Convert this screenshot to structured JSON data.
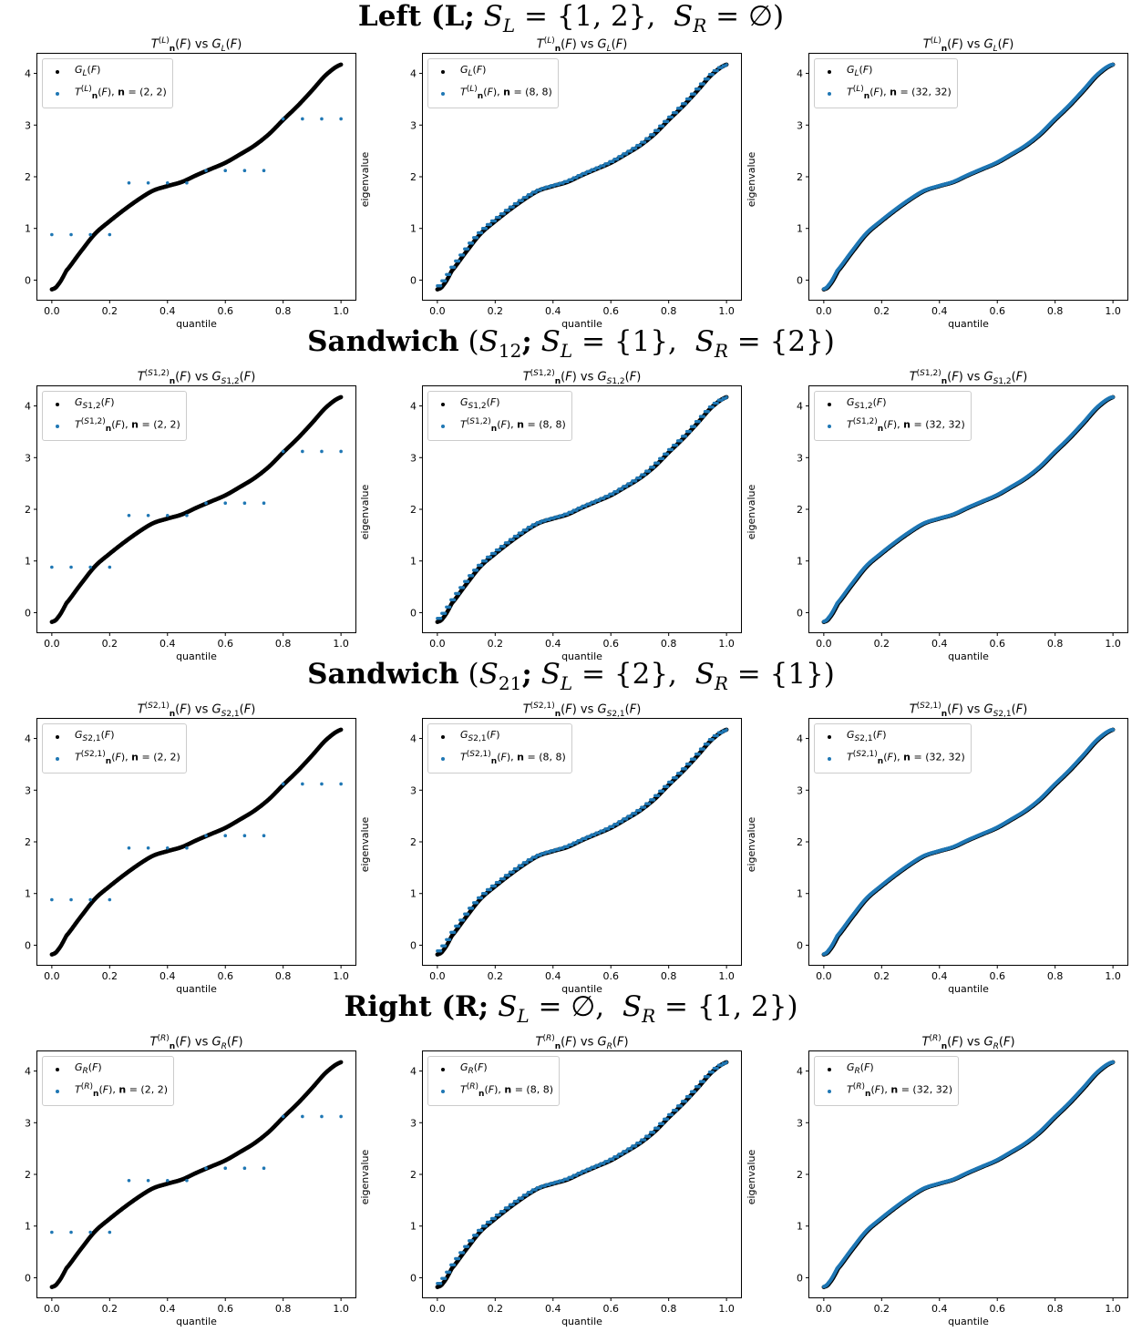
{
  "rows": [
    {
      "title_html": "<span class=\"b\">Left (L;</span> <i>S</i><sub><i>L</i></sub> = {1, 2},&nbsp; <i>S</i><sub><i>R</i></sub> = ∅)",
      "panels": [
        {
          "title_html": "<i>T</i><sup>(<i>L</i>)</sup><sub><b>n</b></sub>(<i>F</i>) vs <i>G</i><sub><i>L</i></sub>(<i>F</i>)",
          "legend_g_html": "<i>G</i><sub><i>L</i></sub>(<i>F</i>)",
          "legend_t_html": "<i>T</i><sup>(<i>L</i>)</sup><sub><b>n</b></sub>(<i>F</i>), <b>n</b> = (2, 2)",
          "n": 2
        },
        {
          "title_html": "<i>T</i><sup>(<i>L</i>)</sup><sub><b>n</b></sub>(<i>F</i>) vs <i>G</i><sub><i>L</i></sub>(<i>F</i>)",
          "legend_g_html": "<i>G</i><sub><i>L</i></sub>(<i>F</i>)",
          "legend_t_html": "<i>T</i><sup>(<i>L</i>)</sup><sub><b>n</b></sub>(<i>F</i>), <b>n</b> = (8, 8)",
          "n": 8
        },
        {
          "title_html": "<i>T</i><sup>(<i>L</i>)</sup><sub><b>n</b></sub>(<i>F</i>) vs <i>G</i><sub><i>L</i></sub>(<i>F</i>)",
          "legend_g_html": "<i>G</i><sub><i>L</i></sub>(<i>F</i>)",
          "legend_t_html": "<i>T</i><sup>(<i>L</i>)</sup><sub><b>n</b></sub>(<i>F</i>), <b>n</b> = (32, 32)",
          "n": 32
        }
      ]
    },
    {
      "title_html": "<span class=\"b\">Sandwich</span> (<i>S</i><sub>12</sub><span class=\"b\">;</span> <i>S</i><sub><i>L</i></sub> = {1},&nbsp; <i>S</i><sub><i>R</i></sub> = {2})",
      "panels": [
        {
          "title_html": "<i>T</i><sup>(<i>S</i>1,2)</sup><sub><b>n</b></sub>(<i>F</i>) vs <i>G</i><sub><i>S</i>1,2</sub>(<i>F</i>)",
          "legend_g_html": "<i>G</i><sub><i>S</i>1,2</sub>(<i>F</i>)",
          "legend_t_html": "<i>T</i><sup>(<i>S</i>1,2)</sup><sub><b>n</b></sub>(<i>F</i>), <b>n</b> = (2, 2)",
          "n": 2
        },
        {
          "title_html": "<i>T</i><sup>(<i>S</i>1,2)</sup><sub><b>n</b></sub>(<i>F</i>) vs <i>G</i><sub><i>S</i>1,2</sub>(<i>F</i>)",
          "legend_g_html": "<i>G</i><sub><i>S</i>1,2</sub>(<i>F</i>)",
          "legend_t_html": "<i>T</i><sup>(<i>S</i>1,2)</sup><sub><b>n</b></sub>(<i>F</i>), <b>n</b> = (8, 8)",
          "n": 8
        },
        {
          "title_html": "<i>T</i><sup>(<i>S</i>1,2)</sup><sub><b>n</b></sub>(<i>F</i>) vs <i>G</i><sub><i>S</i>1,2</sub>(<i>F</i>)",
          "legend_g_html": "<i>G</i><sub><i>S</i>1,2</sub>(<i>F</i>)",
          "legend_t_html": "<i>T</i><sup>(<i>S</i>1,2)</sup><sub><b>n</b></sub>(<i>F</i>), <b>n</b> = (32, 32)",
          "n": 32
        }
      ]
    },
    {
      "title_html": "<span class=\"b\">Sandwich</span> (<i>S</i><sub>21</sub><span class=\"b\">;</span> <i>S</i><sub><i>L</i></sub> = {2},&nbsp; <i>S</i><sub><i>R</i></sub> = {1})",
      "panels": [
        {
          "title_html": "<i>T</i><sup>(<i>S</i>2,1)</sup><sub><b>n</b></sub>(<i>F</i>) vs <i>G</i><sub><i>S</i>2,1</sub>(<i>F</i>)",
          "legend_g_html": "<i>G</i><sub><i>S</i>2,1</sub>(<i>F</i>)",
          "legend_t_html": "<i>T</i><sup>(<i>S</i>2,1)</sup><sub><b>n</b></sub>(<i>F</i>), <b>n</b> = (2, 2)",
          "n": 2
        },
        {
          "title_html": "<i>T</i><sup>(<i>S</i>2,1)</sup><sub><b>n</b></sub>(<i>F</i>) vs <i>G</i><sub><i>S</i>2,1</sub>(<i>F</i>)",
          "legend_g_html": "<i>G</i><sub><i>S</i>2,1</sub>(<i>F</i>)",
          "legend_t_html": "<i>T</i><sup>(<i>S</i>2,1)</sup><sub><b>n</b></sub>(<i>F</i>), <b>n</b> = (8, 8)",
          "n": 8
        },
        {
          "title_html": "<i>T</i><sup>(<i>S</i>2,1)</sup><sub><b>n</b></sub>(<i>F</i>) vs <i>G</i><sub><i>S</i>2,1</sub>(<i>F</i>)",
          "legend_g_html": "<i>G</i><sub><i>S</i>2,1</sub>(<i>F</i>)",
          "legend_t_html": "<i>T</i><sup>(<i>S</i>2,1)</sup><sub><b>n</b></sub>(<i>F</i>), <b>n</b> = (32, 32)",
          "n": 32
        }
      ]
    },
    {
      "title_html": "<span class=\"b\">Right (R;</span> <i>S</i><sub><i>L</i></sub> = ∅,&nbsp; <i>S</i><sub><i>R</i></sub> = {1, 2})",
      "panels": [
        {
          "title_html": "<i>T</i><sup>(<i>R</i>)</sup><sub><b>n</b></sub>(<i>F</i>) vs <i>G</i><sub><i>R</i></sub>(<i>F</i>)",
          "legend_g_html": "<i>G</i><sub><i>R</i></sub>(<i>F</i>)",
          "legend_t_html": "<i>T</i><sup>(<i>R</i>)</sup><sub><b>n</b></sub>(<i>F</i>), <b>n</b> = (2, 2)",
          "n": 2
        },
        {
          "title_html": "<i>T</i><sup>(<i>R</i>)</sup><sub><b>n</b></sub>(<i>F</i>) vs <i>G</i><sub><i>R</i></sub>(<i>F</i>)",
          "legend_g_html": "<i>G</i><sub><i>R</i></sub>(<i>F</i>)",
          "legend_t_html": "<i>T</i><sup>(<i>R</i>)</sup><sub><b>n</b></sub>(<i>F</i>), <b>n</b> = (8, 8)",
          "n": 8
        },
        {
          "title_html": "<i>T</i><sup>(<i>R</i>)</sup><sub><b>n</b></sub>(<i>F</i>) vs <i>G</i><sub><i>R</i></sub>(<i>F</i>)",
          "legend_g_html": "<i>G</i><sub><i>R</i></sub>(<i>F</i>)",
          "legend_t_html": "<i>T</i><sup>(<i>R</i>)</sup><sub><b>n</b></sub>(<i>F</i>), <b>n</b> = (32, 32)",
          "n": 32
        }
      ]
    }
  ],
  "chart_data": {
    "type": "scatter",
    "subplot_grid": [
      4,
      3
    ],
    "xlabel": "quantile",
    "ylabel": "eigenvalue",
    "xlim": [
      -0.05,
      1.05
    ],
    "ylim": [
      -0.38,
      4.38
    ],
    "xticks": [
      0.0,
      0.2,
      0.4,
      0.6,
      0.8,
      1.0
    ],
    "xtick_labels": [
      "0.0",
      "0.2",
      "0.4",
      "0.6",
      "0.8",
      "1.0"
    ],
    "yticks": [
      0,
      1,
      2,
      3,
      4
    ],
    "ytick_labels": [
      "0",
      "1",
      "2",
      "3",
      "4"
    ],
    "legend_placement": "upper-left",
    "series_colors": {
      "G": "#000000",
      "T": "#1f77b4"
    },
    "symbol_curve": {
      "name": "G(F)",
      "quantile": [
        0.0,
        0.02,
        0.05,
        0.1,
        0.15,
        0.2,
        0.25,
        0.3,
        0.35,
        0.4,
        0.45,
        0.5,
        0.55,
        0.6,
        0.65,
        0.7,
        0.75,
        0.8,
        0.85,
        0.9,
        0.95,
        1.0
      ],
      "eigenvalue": [
        -0.18,
        -0.1,
        0.18,
        0.55,
        0.9,
        1.14,
        1.36,
        1.56,
        1.73,
        1.82,
        1.9,
        2.03,
        2.15,
        2.27,
        2.43,
        2.6,
        2.82,
        3.1,
        3.37,
        3.67,
        3.98,
        4.17
      ]
    },
    "coarse_series_n2": {
      "quantile": [
        0.0,
        0.0667,
        0.1333,
        0.2,
        0.2667,
        0.3333,
        0.4,
        0.4667,
        0.5333,
        0.6,
        0.6667,
        0.7333,
        0.8,
        0.8667,
        0.9333,
        1.0
      ],
      "eigenvalue": [
        0.88,
        0.88,
        0.88,
        0.88,
        1.88,
        1.88,
        1.88,
        1.88,
        2.12,
        2.12,
        2.12,
        2.12,
        3.12,
        3.12,
        3.12,
        3.12
      ]
    },
    "panel_grid_sizes": [
      2,
      8,
      32
    ]
  }
}
